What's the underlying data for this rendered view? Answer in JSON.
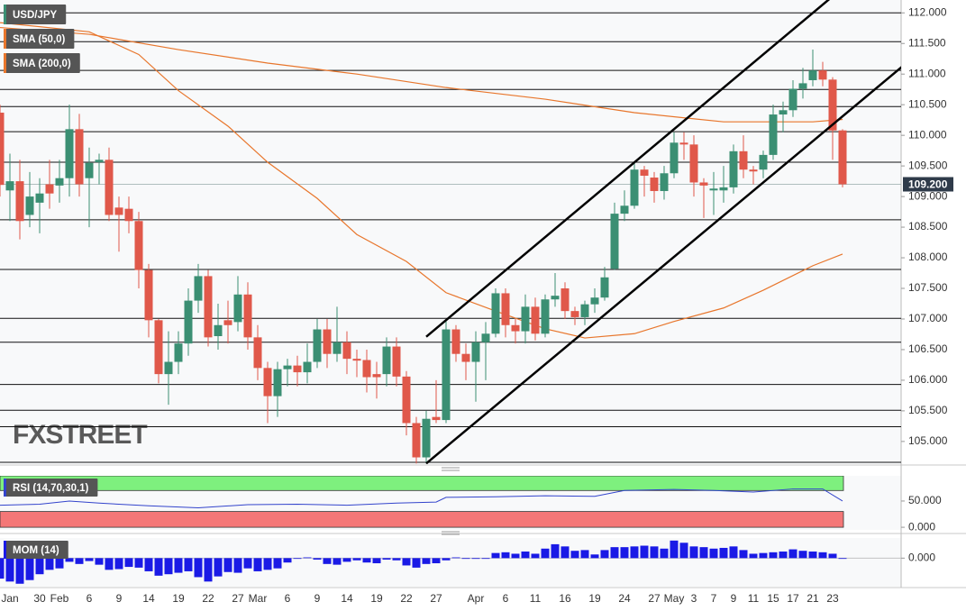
{
  "chart_data": [
    {
      "type": "candlestick",
      "name": "USD/JPY",
      "watermark": "FXSTREET",
      "categories": [
        null,
        "Jan",
        null,
        null,
        "30",
        null,
        "Feb",
        null,
        null,
        "6",
        null,
        null,
        "9",
        null,
        null,
        "14",
        null,
        null,
        "19",
        null,
        null,
        "22",
        null,
        null,
        "27",
        null,
        "Mar",
        null,
        null,
        "6",
        null,
        null,
        "9",
        null,
        null,
        "14",
        null,
        null,
        "19",
        null,
        null,
        "22",
        null,
        null,
        "27",
        null,
        null,
        null,
        "Apr",
        null,
        null,
        "6",
        null,
        null,
        "11",
        null,
        null,
        "16",
        null,
        null,
        "19",
        null,
        null,
        "24",
        null,
        null,
        "27",
        null,
        "May",
        null,
        "3",
        null,
        "7",
        null,
        "9",
        null,
        "11",
        null,
        "15",
        null,
        "17",
        null,
        "21",
        null,
        "23",
        null
      ],
      "open": [
        110.37,
        109.1,
        109.25,
        108.7,
        108.9,
        109.2,
        109.18,
        109.3,
        110.1,
        109.3,
        109.56,
        109.6,
        108.82,
        108.8,
        108.6,
        107.8,
        106.98,
        106.1,
        106.3,
        106.6,
        107.3,
        107.7,
        106.72,
        106.98,
        106.95,
        107.4,
        106.7,
        106.2,
        105.74,
        106.18,
        106.24,
        106.13,
        106.3,
        106.83,
        106.43,
        106.62,
        106.35,
        106.33,
        106.1,
        106.1,
        106.55,
        106.06,
        105.3,
        104.74,
        105.4,
        105.35,
        106.83,
        106.43,
        106.3,
        106.62,
        106.76,
        107.42,
        106.9,
        106.8,
        107.2,
        106.76,
        107.32,
        107.5,
        107.13,
        107.03,
        107.24,
        107.35,
        107.82,
        108.72,
        108.85,
        109.44,
        109.31,
        109.09,
        109.38,
        109.88,
        109.85,
        109.23,
        109.1,
        109.1,
        109.15,
        109.74,
        109.44,
        109.44,
        109.68,
        110.34,
        110.41,
        110.76,
        110.9,
        111.06,
        110.91,
        110.08
      ],
      "high": [
        110.5,
        109.7,
        109.6,
        109.4,
        109.3,
        109.6,
        109.6,
        110.5,
        110.35,
        109.8,
        109.7,
        109.8,
        109.0,
        109.0,
        108.75,
        107.9,
        107.0,
        106.8,
        106.8,
        107.5,
        107.9,
        107.8,
        107.25,
        107.3,
        107.7,
        107.6,
        106.9,
        106.3,
        106.3,
        106.35,
        106.4,
        106.6,
        107.0,
        107.0,
        107.2,
        106.8,
        106.5,
        106.5,
        106.3,
        106.7,
        106.7,
        106.15,
        105.4,
        105.5,
        106.0,
        107.0,
        106.9,
        106.6,
        106.8,
        106.95,
        107.5,
        107.5,
        107.0,
        107.4,
        107.35,
        107.4,
        107.75,
        107.6,
        107.2,
        107.3,
        107.5,
        107.85,
        108.9,
        109.1,
        109.55,
        109.5,
        109.4,
        109.5,
        110.05,
        110.05,
        110.0,
        109.3,
        109.4,
        109.5,
        109.85,
        110.0,
        109.5,
        109.75,
        110.5,
        110.55,
        110.9,
        111.1,
        111.4,
        111.2,
        110.95,
        110.1
      ],
      "low": [
        109.0,
        108.6,
        108.3,
        108.5,
        108.4,
        108.8,
        108.9,
        109.0,
        109.0,
        108.5,
        109.2,
        108.6,
        108.1,
        108.4,
        107.5,
        106.7,
        105.95,
        105.6,
        106.1,
        106.4,
        107.1,
        106.55,
        106.5,
        106.6,
        106.8,
        106.5,
        106.0,
        105.3,
        105.4,
        105.9,
        105.9,
        105.95,
        106.2,
        106.2,
        106.3,
        106.1,
        106.05,
        105.8,
        105.7,
        105.9,
        105.9,
        105.1,
        104.64,
        104.64,
        105.3,
        105.3,
        106.3,
        106.0,
        105.65,
        106.0,
        106.7,
        106.7,
        106.6,
        106.6,
        106.65,
        106.7,
        107.2,
        107.0,
        106.9,
        106.9,
        107.1,
        107.3,
        107.8,
        108.6,
        108.8,
        109.0,
        108.9,
        108.95,
        109.3,
        109.6,
        109.0,
        108.65,
        108.7,
        108.9,
        109.05,
        109.3,
        109.2,
        109.3,
        109.6,
        110.05,
        110.3,
        110.6,
        110.8,
        110.8,
        109.6,
        109.15
      ],
      "close": [
        109.19,
        109.25,
        108.6,
        109.0,
        109.05,
        109.05,
        109.3,
        110.1,
        109.2,
        109.55,
        109.6,
        108.7,
        108.7,
        108.6,
        107.8,
        106.98,
        106.1,
        106.3,
        106.6,
        107.3,
        107.7,
        106.7,
        106.9,
        106.9,
        107.4,
        106.7,
        106.2,
        105.74,
        106.18,
        106.24,
        106.13,
        106.3,
        106.83,
        106.43,
        106.62,
        106.35,
        106.32,
        106.05,
        106.05,
        106.55,
        106.06,
        105.3,
        104.74,
        105.37,
        105.35,
        106.83,
        106.43,
        106.3,
        106.62,
        106.76,
        107.42,
        106.9,
        106.8,
        107.2,
        106.76,
        107.32,
        107.38,
        107.13,
        107.03,
        107.24,
        107.35,
        107.68,
        108.72,
        108.85,
        109.44,
        109.34,
        109.09,
        109.38,
        109.88,
        109.85,
        109.23,
        109.18,
        109.13,
        109.15,
        109.74,
        109.44,
        109.41,
        109.68,
        110.34,
        110.41,
        110.76,
        110.85,
        111.06,
        110.91,
        110.08,
        109.2
      ],
      "up_color": "#3b8f73",
      "down_color": "#e0584a",
      "series": [
        {
          "name": "SMA (50,0)",
          "color": "#e8762c",
          "x": [
            0,
            9,
            14,
            18,
            23,
            27,
            32,
            36,
            41,
            45,
            50,
            55,
            59,
            64,
            68,
            73,
            77,
            82,
            85
          ],
          "values": [
            111.84,
            111.69,
            111.32,
            110.73,
            110.15,
            109.56,
            108.97,
            108.38,
            107.94,
            107.43,
            107.13,
            106.84,
            106.69,
            106.76,
            106.96,
            107.18,
            107.47,
            107.87,
            108.06
          ]
        },
        {
          "name": "SMA (200,0)",
          "color": "#e8762c",
          "x": [
            0,
            9,
            18,
            27,
            36,
            45,
            55,
            64,
            73,
            82,
            85
          ],
          "values": [
            111.76,
            111.65,
            111.4,
            111.18,
            111.0,
            110.78,
            110.59,
            110.37,
            110.22,
            110.22,
            110.26
          ]
        }
      ],
      "levels": [
        112.0,
        111.53,
        111.06,
        110.75,
        110.47,
        110.06,
        109.56,
        108.62,
        107.81,
        107.01,
        106.62,
        105.93,
        105.51,
        105.24,
        104.66
      ],
      "trendlines": [
        {
          "from": [
            43,
            106.71
          ],
          "to": [
            84,
            112.27
          ]
        },
        {
          "from": [
            43,
            104.64
          ],
          "to": [
            91,
            111.12
          ]
        }
      ],
      "last_price": {
        "value": 109.2,
        "label": "109.200"
      },
      "ylim": [
        104.63,
        112.21
      ],
      "yticks": [
        {
          "value": 105,
          "label": "105.000"
        },
        {
          "value": 105.5,
          "label": "105.500"
        },
        {
          "value": 106,
          "label": "106.000"
        },
        {
          "value": 106.5,
          "label": "106.500"
        },
        {
          "value": 107,
          "label": "107.000"
        },
        {
          "value": 107.5,
          "label": "107.500"
        },
        {
          "value": 108,
          "label": "108.000"
        },
        {
          "value": 108.5,
          "label": "108.500"
        },
        {
          "value": 109,
          "label": "109.000"
        },
        {
          "value": 109.5,
          "label": "109.500"
        },
        {
          "value": 110,
          "label": "110.000"
        },
        {
          "value": 110.5,
          "label": "110.500"
        },
        {
          "value": 111,
          "label": "111.000"
        },
        {
          "value": 111.5,
          "label": "111.500"
        },
        {
          "value": 112,
          "label": "112.000"
        }
      ]
    },
    {
      "type": "line",
      "name": "RSI (14,70,30,1)",
      "color": "#3344cc",
      "x": [
        0,
        4,
        7,
        10,
        15,
        20,
        25,
        30,
        35,
        40,
        44,
        45,
        50,
        55,
        60,
        63,
        68,
        72,
        76,
        80,
        83,
        85
      ],
      "values": [
        42,
        44,
        50,
        46,
        41,
        37,
        43,
        44,
        42,
        46,
        48,
        57,
        58,
        60,
        59,
        70,
        72,
        70,
        67,
        73,
        73,
        50
      ],
      "overbought": 70,
      "oversold": 30,
      "overbought_color": "#7ef07e",
      "oversold_color": "#f47777",
      "ylim": [
        -5,
        98
      ],
      "yticks": [
        {
          "value": 50,
          "label": "50.000"
        },
        {
          "value": 0,
          "label": "0.000"
        }
      ]
    },
    {
      "type": "bar",
      "name": "MOM (14)",
      "color": "#1a1ae6",
      "values": [
        -2.8,
        -3.2,
        -3.5,
        -3.0,
        -2.2,
        -1.6,
        -1.4,
        -0.5,
        -0.8,
        -0.4,
        -0.9,
        -1.6,
        -1.5,
        -1.2,
        -1.3,
        -1.8,
        -2.4,
        -2.2,
        -2.0,
        -1.8,
        -2.6,
        -3.2,
        -2.5,
        -1.9,
        -2.0,
        -1.4,
        -1.8,
        -1.6,
        -1.4,
        -0.6,
        0.0,
        0.1,
        -0.2,
        -0.8,
        -0.9,
        -0.5,
        -0.3,
        -0.6,
        -0.7,
        -0.2,
        -0.3,
        -1.0,
        -1.3,
        -0.8,
        -0.7,
        -0.3,
        0.1,
        0.0,
        -0.1,
        0.0,
        0.7,
        0.8,
        0.6,
        0.9,
        0.6,
        1.3,
        1.9,
        1.6,
        1.0,
        1.1,
        0.5,
        1.1,
        1.5,
        1.5,
        1.6,
        1.7,
        1.6,
        1.3,
        2.4,
        2.1,
        1.6,
        1.5,
        1.3,
        1.4,
        1.6,
        1.1,
        0.6,
        0.7,
        0.8,
        0.9,
        1.2,
        1.0,
        0.9,
        0.8,
        0.6,
        0.0
      ],
      "ylim": [
        -3.9,
        2.75
      ],
      "yticks": [
        {
          "value": 0,
          "label": "0.000"
        }
      ]
    }
  ]
}
